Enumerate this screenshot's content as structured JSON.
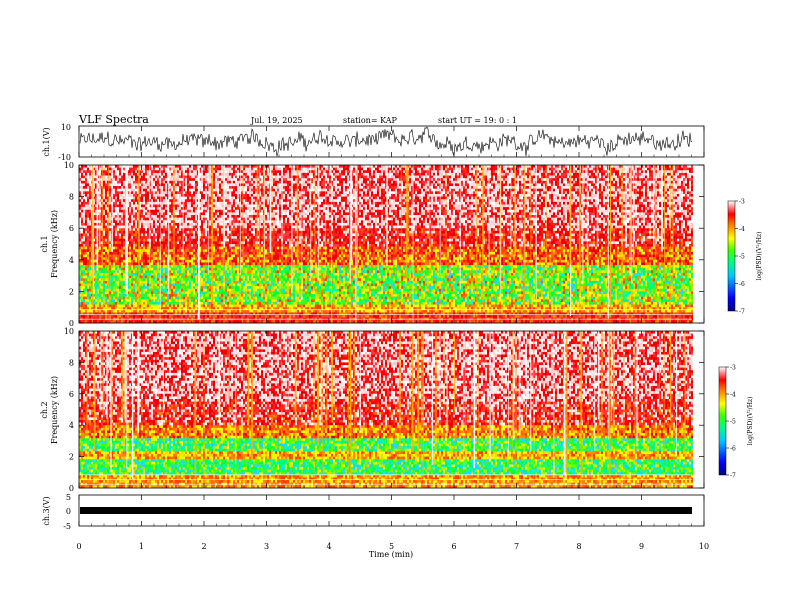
{
  "header": {
    "title": "VLF Spectra",
    "date": "Jul. 19, 2025",
    "station": "station= KAP",
    "start": "start  UT =   19: 0  : 1"
  },
  "chart_data": [
    {
      "type": "line",
      "name": "ch1-waveform",
      "ylabel": "ch.1(V)",
      "ylim": [
        -10,
        10
      ],
      "yticks": [
        "10",
        "-10"
      ],
      "xlim": [
        0,
        10
      ]
    },
    {
      "type": "heatmap",
      "name": "ch1-spectrogram",
      "ylabel_top": "ch.1",
      "ylabel": "Frequency (kHz)",
      "ylim": [
        0,
        10
      ],
      "yticks": [
        "0",
        "2",
        "4",
        "6",
        "8",
        "10"
      ],
      "xlim": [
        0,
        10
      ],
      "colorbar": {
        "label": "log(PSD)(V²/Hz)",
        "min": -7,
        "max": -3,
        "ticks": [
          "-3",
          "-4",
          "-5",
          "-6",
          "-7"
        ]
      }
    },
    {
      "type": "heatmap",
      "name": "ch2-spectrogram",
      "ylabel_top": "ch.2",
      "ylabel": "Frequency (kHz)",
      "ylim": [
        0,
        10
      ],
      "yticks": [
        "0",
        "2",
        "4",
        "6",
        "8",
        "10"
      ],
      "xlim": [
        0,
        10
      ],
      "colorbar": {
        "label": "log(PSD)(V²/Hz)",
        "min": -7,
        "max": -3,
        "ticks": [
          "-3",
          "-4",
          "-5",
          "-6",
          "-7"
        ]
      }
    },
    {
      "type": "line",
      "name": "ch3-waveform",
      "ylabel": "ch.3(V)",
      "ylim": [
        -5,
        5
      ],
      "yticks": [
        "5",
        "0",
        "-5"
      ],
      "xlim": [
        0,
        10
      ],
      "xlabel": "Time (min)",
      "xticks": [
        "0",
        "1",
        "2",
        "3",
        "4",
        "5",
        "6",
        "7",
        "8",
        "9",
        "10"
      ]
    }
  ]
}
